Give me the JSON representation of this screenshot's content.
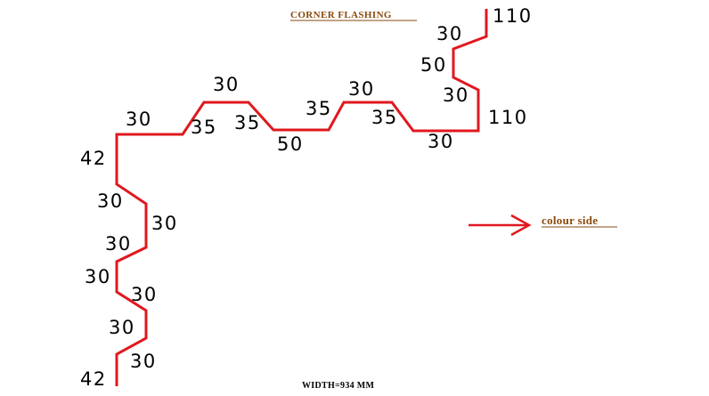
{
  "drawing": {
    "title": "CORNER FLASHING",
    "colour_side_label": "colour side",
    "width_label": "WIDTH=934 MM",
    "line_color": "#e0181e",
    "text_color": "#8a4a0c"
  },
  "dimensions": {
    "top_right_flange": "110",
    "top_right_30": "30",
    "right_50": "50",
    "right_30": "30",
    "right_110": "110",
    "right_bottom_30": "30",
    "rib2_35_right": "35",
    "rib2_top_30": "30",
    "rib2_35_left": "35",
    "rib1_valley_50": "50",
    "rib1_35_right": "35",
    "rib1_top_30": "30",
    "rib1_35_left": "35",
    "left_top_30": "30",
    "left_42_top": "42",
    "left_30_a": "30",
    "left_30_b": "30",
    "left_30_c": "30",
    "left_30_d": "30",
    "left_30_e": "30",
    "left_30_f": "30",
    "left_30_g": "30",
    "left_42_bottom": "42"
  }
}
